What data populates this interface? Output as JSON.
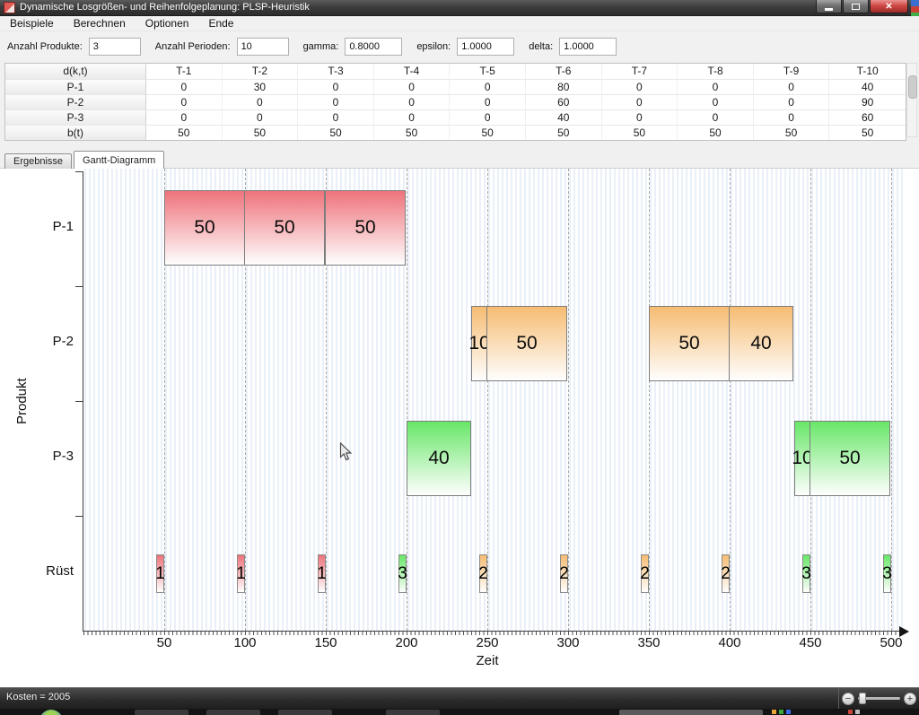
{
  "window": {
    "title": "Dynamische Losgrößen- und Reihenfolgeplanung: PLSP-Heuristik"
  },
  "menu": {
    "items": [
      "Beispiele",
      "Berechnen",
      "Optionen",
      "Ende"
    ]
  },
  "toolbar": {
    "fields": [
      {
        "label": "Anzahl Produkte:",
        "value": "3"
      },
      {
        "label": "Anzahl Perioden:",
        "value": "10"
      },
      {
        "label": "gamma:",
        "value": "0.8000"
      },
      {
        "label": "epsilon:",
        "value": "1.0000"
      },
      {
        "label": "delta:",
        "value": "1.0000"
      }
    ]
  },
  "demand_table": {
    "columns": [
      "d(k,t)",
      "T-1",
      "T-2",
      "T-3",
      "T-4",
      "T-5",
      "T-6",
      "T-7",
      "T-8",
      "T-9",
      "T-10"
    ],
    "rows": [
      {
        "label": "P-1",
        "values": [
          "0",
          "30",
          "0",
          "0",
          "0",
          "80",
          "0",
          "0",
          "0",
          "40"
        ]
      },
      {
        "label": "P-2",
        "values": [
          "0",
          "0",
          "0",
          "0",
          "0",
          "60",
          "0",
          "0",
          "0",
          "90"
        ]
      },
      {
        "label": "P-3",
        "values": [
          "0",
          "0",
          "0",
          "0",
          "0",
          "40",
          "0",
          "0",
          "0",
          "60"
        ]
      },
      {
        "label": "b(t)",
        "values": [
          "50",
          "50",
          "50",
          "50",
          "50",
          "50",
          "50",
          "50",
          "50",
          "50"
        ]
      }
    ]
  },
  "tabs": [
    {
      "label": "Ergebnisse",
      "active": false
    },
    {
      "label": "Gantt-Diagramm",
      "active": true
    }
  ],
  "chart_data": {
    "type": "gantt",
    "xlabel": "Zeit",
    "ylabel": "Produkt",
    "x_range": [
      0,
      500
    ],
    "x_ticks": [
      50,
      100,
      150,
      200,
      250,
      300,
      350,
      400,
      450,
      500
    ],
    "rows": [
      "P-1",
      "P-2",
      "P-3",
      "Rüst"
    ],
    "product_colors": {
      "P-1": "#ee737b",
      "P-2": "#f6bc72",
      "P-3": "#68e768"
    },
    "bars": [
      {
        "row": "P-1",
        "start": 50,
        "end": 100,
        "label": "50"
      },
      {
        "row": "P-1",
        "start": 100,
        "end": 150,
        "label": "50"
      },
      {
        "row": "P-1",
        "start": 150,
        "end": 200,
        "label": "50"
      },
      {
        "row": "P-2",
        "start": 240,
        "end": 250,
        "label": "10"
      },
      {
        "row": "P-2",
        "start": 250,
        "end": 300,
        "label": "50"
      },
      {
        "row": "P-2",
        "start": 350,
        "end": 400,
        "label": "50"
      },
      {
        "row": "P-2",
        "start": 400,
        "end": 440,
        "label": "40"
      },
      {
        "row": "P-3",
        "start": 200,
        "end": 240,
        "label": "40"
      },
      {
        "row": "P-3",
        "start": 440,
        "end": 450,
        "label": "10"
      },
      {
        "row": "P-3",
        "start": 450,
        "end": 500,
        "label": "50"
      }
    ],
    "setup_duration": 5,
    "setups": [
      {
        "time": 50,
        "product": "1"
      },
      {
        "time": 100,
        "product": "1"
      },
      {
        "time": 150,
        "product": "1"
      },
      {
        "time": 200,
        "product": "3"
      },
      {
        "time": 250,
        "product": "2"
      },
      {
        "time": 300,
        "product": "2"
      },
      {
        "time": 350,
        "product": "2"
      },
      {
        "time": 400,
        "product": "2"
      },
      {
        "time": 450,
        "product": "3"
      },
      {
        "time": 500,
        "product": "3"
      }
    ]
  },
  "statusbar": {
    "text": "Kosten = 2005",
    "zoom_out_label": "−",
    "zoom_in_label": "+"
  }
}
